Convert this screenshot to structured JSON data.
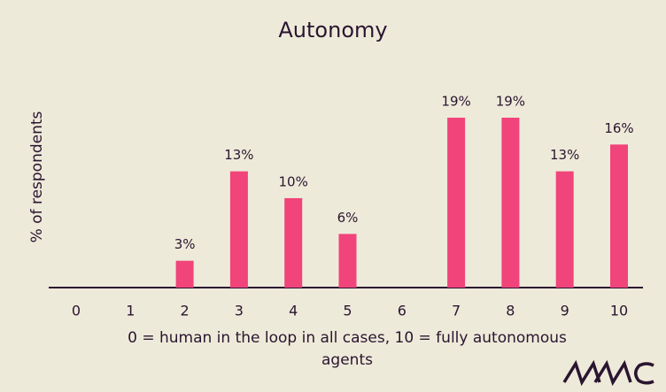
{
  "chart_data": {
    "type": "bar",
    "title": "Autonomy",
    "x_label": "0 = human in the loop in all cases, 10 = fully autonomous agents",
    "y_label": "% of respondents",
    "categories": [
      "0",
      "1",
      "2",
      "3",
      "4",
      "5",
      "6",
      "7",
      "8",
      "9",
      "10"
    ],
    "values": [
      null,
      null,
      3,
      13,
      10,
      6,
      null,
      19,
      19,
      13,
      16
    ],
    "value_labels": [
      null,
      null,
      "3%",
      "13%",
      "10%",
      "6%",
      null,
      "19%",
      "19%",
      "13%",
      "16%"
    ],
    "color": "#f0447a"
  }
}
